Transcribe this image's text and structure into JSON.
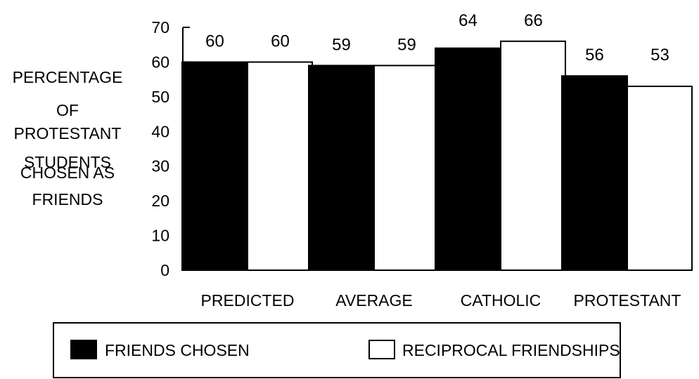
{
  "chart_data": {
    "type": "bar",
    "categories": [
      "PREDICTED",
      "AVERAGE",
      "CATHOLIC",
      "PROTESTANT"
    ],
    "series": [
      {
        "name": "FRIENDS CHOSEN",
        "values": [
          60,
          59,
          64,
          56
        ],
        "color": "#000000"
      },
      {
        "name": "RECIPROCAL FRIENDSHIPS",
        "values": [
          60,
          59,
          66,
          53
        ],
        "color": "#ffffff"
      }
    ],
    "data_labels": [
      [
        "60",
        "59",
        "64",
        "56"
      ],
      [
        "60",
        "59",
        "66",
        "53"
      ]
    ],
    "ylabel_lines": [
      "PERCENTAGE",
      "OF",
      "PROTESTANT",
      "STUDENTS",
      "CHOSEN AS",
      "FRIENDS"
    ],
    "ylim": [
      0,
      70
    ],
    "yticks": [
      "0",
      "10",
      "20",
      "30",
      "40",
      "50",
      "60",
      "70"
    ],
    "grid": false,
    "legend_position": "bottom"
  }
}
